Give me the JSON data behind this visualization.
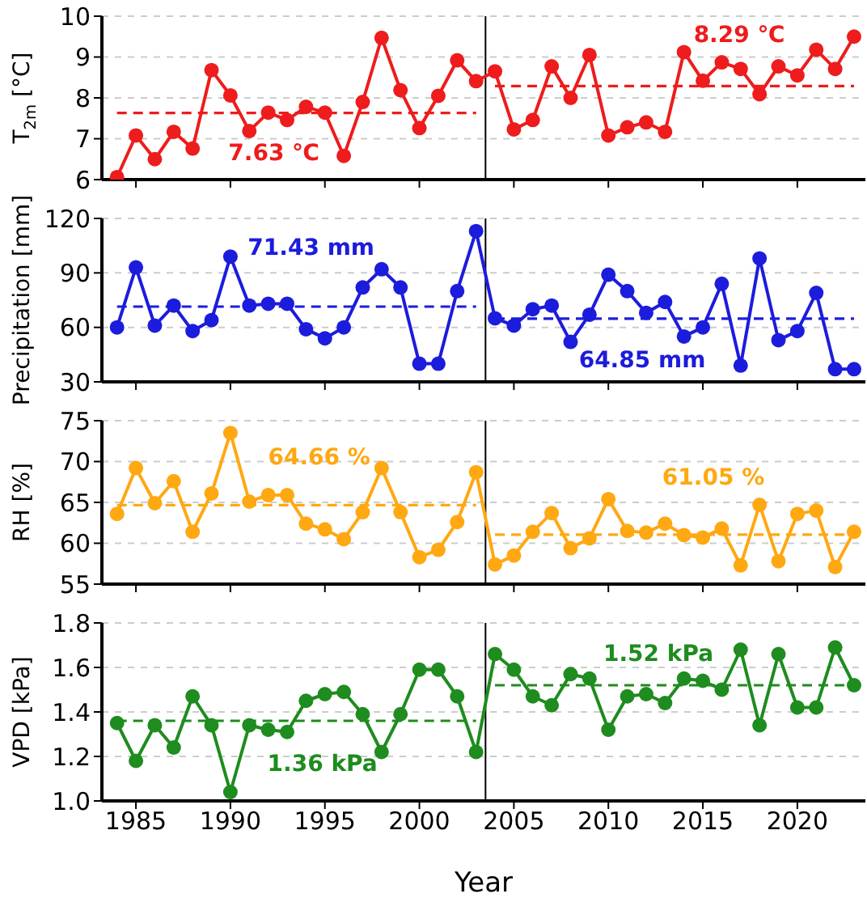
{
  "chart_data": [
    {
      "type": "line",
      "ylabel": "T$_{2m}$ [°C]",
      "x": [
        1984,
        1985,
        1986,
        1987,
        1988,
        1989,
        1990,
        1991,
        1992,
        1993,
        1994,
        1995,
        1996,
        1997,
        1998,
        1999,
        2000,
        2001,
        2002,
        2003,
        2004,
        2005,
        2006,
        2007,
        2008,
        2009,
        2010,
        2011,
        2012,
        2013,
        2014,
        2015,
        2016,
        2017,
        2018,
        2019,
        2020,
        2021,
        2022,
        2023
      ],
      "series": [
        {
          "color": "#ee1c1c",
          "values": [
            6.06,
            7.08,
            6.5,
            7.17,
            6.76,
            8.68,
            8.06,
            7.19,
            7.64,
            7.46,
            7.78,
            7.64,
            6.58,
            7.9,
            9.47,
            8.19,
            7.26,
            8.05,
            8.92,
            8.41,
            8.65,
            7.23,
            7.46,
            8.77,
            8.0,
            9.05,
            7.08,
            7.28,
            7.4,
            7.17,
            9.12,
            8.42,
            8.87,
            8.71,
            8.09,
            8.77,
            8.55,
            9.18,
            8.71,
            9.5
          ]
        },
        {
          "color": "#ee1c1c",
          "x": [
            1984,
            2003
          ],
          "values": [
            7.63,
            7.63
          ],
          "marker": "none",
          "line_style": "dashed"
        },
        {
          "color": "#ee1c1c",
          "x": [
            2004,
            2023
          ],
          "values": [
            8.29,
            8.29
          ],
          "marker": "none",
          "line_style": "dashed"
        }
      ],
      "annotations": [
        "7.63 ℃",
        "8.29 ℃"
      ],
      "ref_lines": [
        {
          "axis": "x",
          "value": 2003.5,
          "color": "#000000"
        }
      ],
      "xlim": [
        1983.2,
        2023.6
      ],
      "xticks": [
        1985,
        1990,
        1995,
        2000,
        2005,
        2010,
        2015,
        2020
      ],
      "ylim": [
        6,
        10
      ],
      "yticks": [
        6,
        7,
        8,
        9,
        10
      ],
      "grid": "y",
      "marker": "circle",
      "line_style": "solid",
      "tick_labels": "y"
    },
    {
      "type": "line",
      "ylabel": "Precipitation [mm]",
      "x": [
        1984,
        1985,
        1986,
        1987,
        1988,
        1989,
        1990,
        1991,
        1992,
        1993,
        1994,
        1995,
        1996,
        1997,
        1998,
        1999,
        2000,
        2001,
        2002,
        2003,
        2004,
        2005,
        2006,
        2007,
        2008,
        2009,
        2010,
        2011,
        2012,
        2013,
        2014,
        2015,
        2016,
        2017,
        2018,
        2019,
        2020,
        2021,
        2022,
        2023
      ],
      "series": [
        {
          "color": "#1c1cdd",
          "values": [
            60,
            93,
            61,
            72,
            58,
            64,
            99,
            72,
            73,
            73,
            59,
            54,
            60,
            82,
            92,
            82,
            40,
            40,
            80,
            113,
            65,
            61,
            70,
            72,
            52,
            67,
            89,
            80,
            68,
            74,
            55,
            60,
            84,
            39,
            98,
            53,
            58,
            79,
            37,
            37
          ]
        },
        {
          "color": "#1c1cdd",
          "x": [
            1984,
            2003
          ],
          "values": [
            71.43,
            71.43
          ],
          "marker": "none",
          "line_style": "dashed"
        },
        {
          "color": "#1c1cdd",
          "x": [
            2004,
            2023
          ],
          "values": [
            64.85,
            64.85
          ],
          "marker": "none",
          "line_style": "dashed"
        }
      ],
      "annotations": [
        "71.43 mm",
        "64.85 mm"
      ],
      "ref_lines": [
        {
          "axis": "x",
          "value": 2003.5,
          "color": "#000000"
        }
      ],
      "xlim": [
        1983.2,
        2023.6
      ],
      "xticks": [
        1985,
        1990,
        1995,
        2000,
        2005,
        2010,
        2015,
        2020
      ],
      "ylim": [
        30,
        120
      ],
      "yticks": [
        30,
        60,
        90,
        120
      ],
      "grid": "y",
      "marker": "circle",
      "line_style": "solid",
      "tick_labels": "y"
    },
    {
      "type": "line",
      "ylabel": "RH [%]",
      "x": [
        1984,
        1985,
        1986,
        1987,
        1988,
        1989,
        1990,
        1991,
        1992,
        1993,
        1994,
        1995,
        1996,
        1997,
        1998,
        1999,
        2000,
        2001,
        2002,
        2003,
        2004,
        2005,
        2006,
        2007,
        2008,
        2009,
        2010,
        2011,
        2012,
        2013,
        2014,
        2015,
        2016,
        2017,
        2018,
        2019,
        2020,
        2021,
        2022,
        2023
      ],
      "series": [
        {
          "color": "#ffa812",
          "values": [
            63.6,
            69.2,
            64.9,
            67.6,
            61.4,
            66.1,
            73.5,
            65.1,
            65.9,
            65.9,
            62.4,
            61.7,
            60.5,
            63.8,
            69.2,
            63.8,
            58.3,
            59.2,
            62.6,
            68.7,
            57.4,
            58.5,
            61.4,
            63.7,
            59.4,
            60.6,
            65.4,
            61.5,
            61.3,
            62.4,
            61.0,
            60.7,
            61.8,
            57.3,
            64.7,
            57.8,
            63.6,
            64.0,
            57.1,
            61.4
          ]
        },
        {
          "color": "#ffa812",
          "x": [
            1984,
            2003
          ],
          "values": [
            64.66,
            64.66
          ],
          "marker": "none",
          "line_style": "dashed"
        },
        {
          "color": "#ffa812",
          "x": [
            2004,
            2023
          ],
          "values": [
            61.05,
            61.05
          ],
          "marker": "none",
          "line_style": "dashed"
        }
      ],
      "annotations": [
        "64.66 %",
        "61.05 %"
      ],
      "ref_lines": [
        {
          "axis": "x",
          "value": 2003.5,
          "color": "#000000"
        }
      ],
      "xlim": [
        1983.2,
        2023.6
      ],
      "xticks": [
        1985,
        1990,
        1995,
        2000,
        2005,
        2010,
        2015,
        2020
      ],
      "ylim": [
        55,
        75
      ],
      "yticks": [
        55,
        60,
        65,
        70,
        75
      ],
      "grid": "y",
      "marker": "circle",
      "line_style": "solid",
      "tick_labels": "y"
    },
    {
      "type": "line",
      "ylabel": "VPD [kPa]",
      "xlabel": "Year",
      "x": [
        1984,
        1985,
        1986,
        1987,
        1988,
        1989,
        1990,
        1991,
        1992,
        1993,
        1994,
        1995,
        1996,
        1997,
        1998,
        1999,
        2000,
        2001,
        2002,
        2003,
        2004,
        2005,
        2006,
        2007,
        2008,
        2009,
        2010,
        2011,
        2012,
        2013,
        2014,
        2015,
        2016,
        2017,
        2018,
        2019,
        2020,
        2021,
        2022,
        2023
      ],
      "series": [
        {
          "color": "#1e8c1e",
          "values": [
            1.35,
            1.18,
            1.34,
            1.24,
            1.47,
            1.34,
            1.04,
            1.34,
            1.32,
            1.31,
            1.45,
            1.48,
            1.49,
            1.39,
            1.22,
            1.39,
            1.59,
            1.59,
            1.47,
            1.22,
            1.66,
            1.59,
            1.47,
            1.43,
            1.57,
            1.55,
            1.32,
            1.47,
            1.48,
            1.44,
            1.55,
            1.54,
            1.5,
            1.68,
            1.34,
            1.66,
            1.42,
            1.42,
            1.69,
            1.52
          ]
        },
        {
          "color": "#1e8c1e",
          "x": [
            1984,
            2003
          ],
          "values": [
            1.36,
            1.36
          ],
          "marker": "none",
          "line_style": "dashed"
        },
        {
          "color": "#1e8c1e",
          "x": [
            2004,
            2023
          ],
          "values": [
            1.52,
            1.52
          ],
          "marker": "none",
          "line_style": "dashed"
        }
      ],
      "annotations": [
        "1.36 kPa",
        "1.52 kPa"
      ],
      "ref_lines": [
        {
          "axis": "x",
          "value": 2003.5,
          "color": "#000000"
        }
      ],
      "xlim": [
        1983.2,
        2023.6
      ],
      "xticks": [
        1985,
        1990,
        1995,
        2000,
        2005,
        2010,
        2015,
        2020
      ],
      "ylim": [
        1.0,
        1.8
      ],
      "yticks": [
        {
          "value": 1.0,
          "label": "1.0"
        },
        1.2,
        1.4,
        1.6,
        1.8
      ],
      "grid": "y",
      "marker": "circle",
      "line_style": "solid"
    }
  ]
}
